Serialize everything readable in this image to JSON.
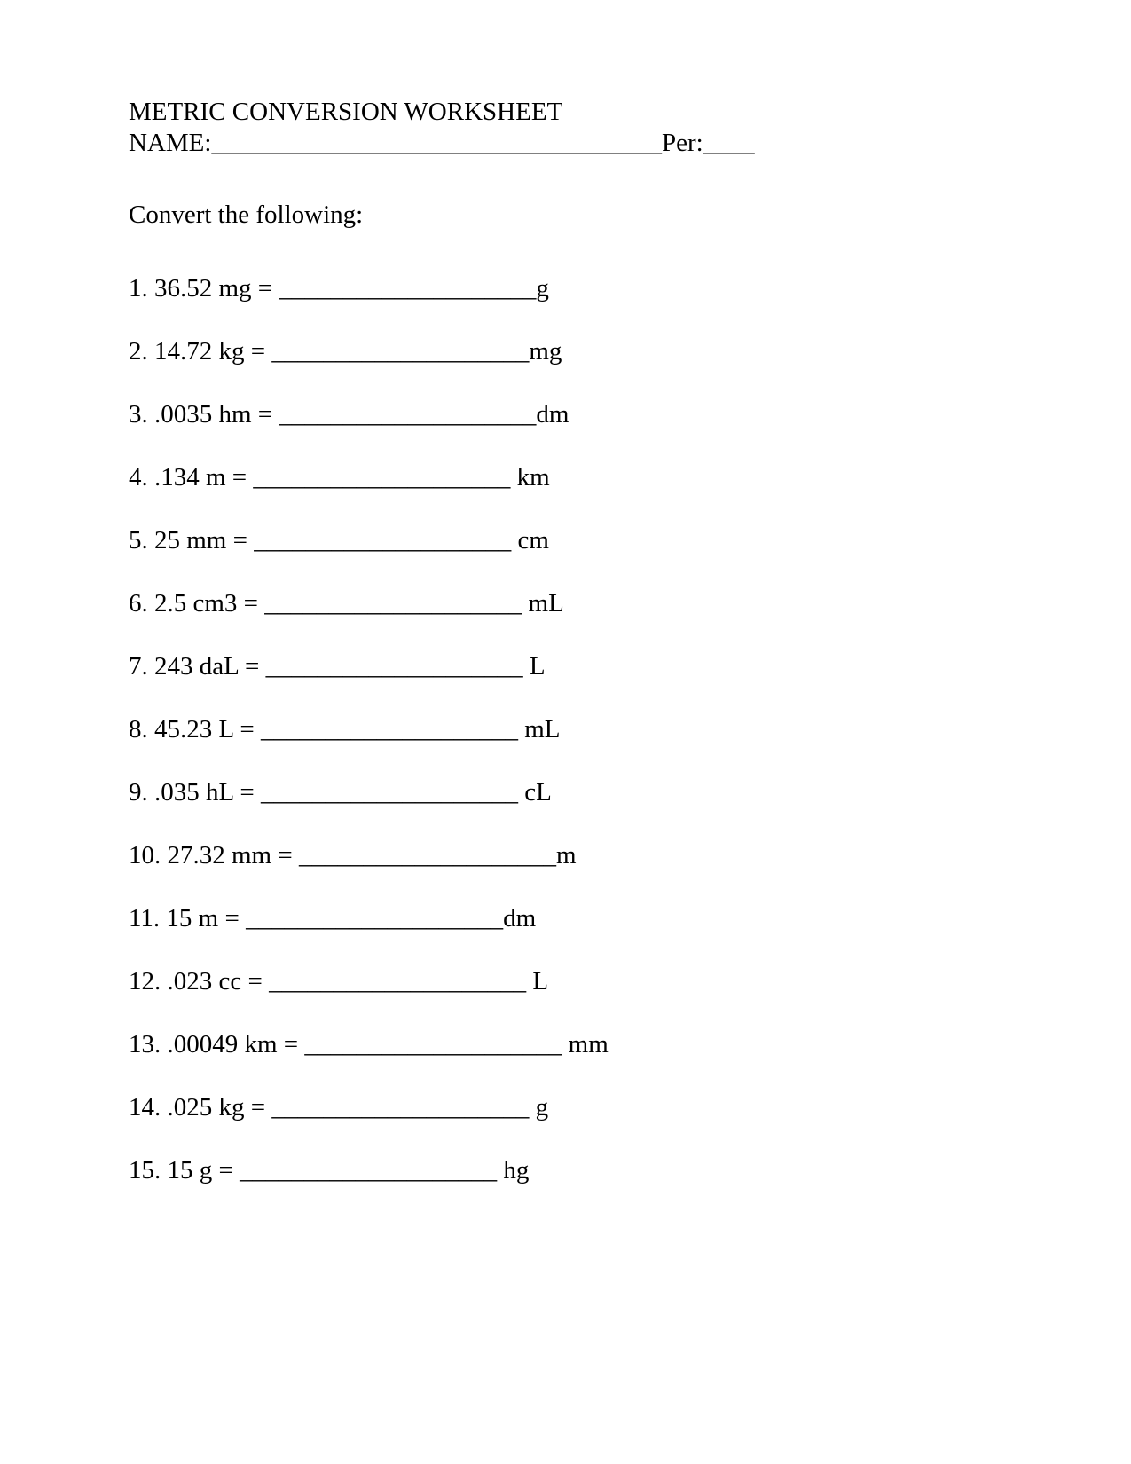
{
  "title": "METRIC CONVERSION WORKSHEET",
  "name_label": "NAME:",
  "name_blank": "___________________________________",
  "per_label": "Per:",
  "per_blank": "____",
  "instruction": "Convert the following:",
  "problems": [
    {
      "num": "1",
      "value": "36.52 mg",
      "blank": "____________________",
      "unit": "g"
    },
    {
      "num": "2",
      "value": "14.72 kg",
      "blank": "____________________",
      "unit": "mg"
    },
    {
      "num": "3",
      "value": ".0035 hm",
      "blank": "____________________",
      "unit": "dm"
    },
    {
      "num": "4",
      "value": ".134 m",
      "blank": "____________________ ",
      "unit": "km"
    },
    {
      "num": "5",
      "value": "25 mm",
      "blank": "____________________ ",
      "unit": "cm"
    },
    {
      "num": "6",
      "value": "2.5 cm3",
      "blank": "____________________ ",
      "unit": "mL"
    },
    {
      "num": "7",
      "value": "243 daL",
      "blank": "____________________ ",
      "unit": "L"
    },
    {
      "num": "8",
      "value": "45.23 L",
      "blank": "____________________ ",
      "unit": "mL"
    },
    {
      "num": "9",
      "value": ".035 hL",
      "blank": "____________________ ",
      "unit": "cL"
    },
    {
      "num": "10",
      "value": "27.32 mm",
      "blank": "____________________",
      "unit": "m"
    },
    {
      "num": "11",
      "value": "15 m",
      "blank": "____________________",
      "unit": "dm"
    },
    {
      "num": "12",
      "value": ".023 cc",
      "blank": "____________________ ",
      "unit": "L"
    },
    {
      "num": "13",
      "value": ".00049 km",
      "blank": "____________________ ",
      "unit": "mm"
    },
    {
      "num": "14",
      "value": ".025 kg",
      "blank": "____________________ ",
      "unit": "g"
    },
    {
      "num": "15",
      "value": "15 g",
      "blank": "____________________ ",
      "unit": "hg"
    }
  ],
  "colors": {
    "background": "#ffffff",
    "text": "#000000"
  },
  "typography": {
    "font_family": "Times New Roman",
    "font_size_pt": 22
  }
}
